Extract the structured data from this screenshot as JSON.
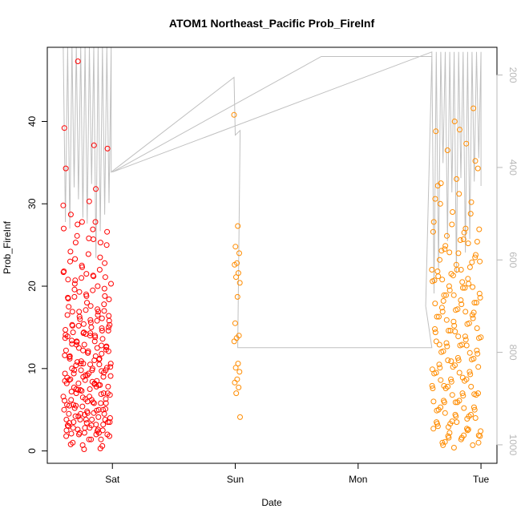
{
  "chart_data": {
    "type": "scatter",
    "title": "ATOM1 Northeast_Pacific Prob_FireInf",
    "xlabel": "Date",
    "ylabel": "Prob_FireInf",
    "x_ticks": [
      "Sat",
      "Sun",
      "Mon",
      "Tue"
    ],
    "y_ticks": [
      0,
      10,
      20,
      30,
      40
    ],
    "ylim": [
      -1.5,
      49
    ],
    "xlim_days": [
      -0.53,
      3.13
    ],
    "right_axis": {
      "ticks": [
        200,
        400,
        600,
        800,
        1000
      ],
      "ylim": [
        1040,
        140
      ],
      "color": "#b8b8b8"
    },
    "point_colors": {
      "group_sat": "#ff0000",
      "group_mon": "#ff8c00",
      "group_tue": "#ff8c00"
    },
    "line_color": "#c0c0c0",
    "groups": [
      {
        "x_range_days": [
          -0.4,
          -0.01
        ],
        "values": [
          29.8,
          26.9,
          19.6,
          17.0,
          14.2,
          13.9,
          12.5,
          12.5,
          12.1,
          10.5,
          10.0,
          9.7,
          9.0,
          8.5,
          8.1,
          7.5,
          6.3,
          6.0,
          5.5,
          5.0,
          4.5,
          4.0,
          3.8,
          3.5,
          3.2,
          2.8,
          2.5,
          2.0,
          47.3,
          36.7,
          30.3,
          28.7,
          25.3,
          22.3,
          21.8,
          21.2,
          20.7,
          18.8,
          18.8,
          18.5,
          16.5,
          16.3,
          15.8,
          15.6,
          15.2,
          14.6,
          14.4,
          14.1,
          13.8,
          13.2,
          12.7,
          12.1,
          11.5,
          11.2,
          10.9,
          10.6,
          10.0,
          9.8,
          9.5,
          9.2,
          8.9,
          8.5,
          8.2,
          7.8,
          7.5,
          7.2,
          6.9,
          6.5,
          6.1,
          5.8,
          5.5,
          5.1,
          4.8,
          4.5,
          4.1,
          3.8,
          3.5,
          3.1,
          2.8,
          2.5,
          2.2,
          1.8,
          31.8,
          27.5,
          26.6,
          25.8,
          24.2,
          23.5,
          22.5,
          21.7,
          21.3,
          20.3,
          19.7,
          19.0,
          18.6,
          17.2,
          16.9,
          16.4,
          15.9,
          15.3,
          14.9,
          14.3,
          13.7,
          13.3,
          12.9,
          12.3,
          11.9,
          11.4,
          11.1,
          10.6,
          10.2,
          9.8,
          9.4,
          9.0,
          8.6,
          8.2,
          7.8,
          7.4,
          7.0,
          6.6,
          6.2,
          5.8,
          5.4,
          5.0,
          4.6,
          4.2,
          3.8,
          3.4,
          3.0,
          2.6,
          2.2,
          1.8,
          1.4,
          1.0,
          0.6,
          0.2,
          34.3,
          27.8,
          26.1,
          25.0,
          23.9,
          23.0,
          22.0,
          21.0,
          20.3,
          19.5,
          18.7,
          17.8,
          17.1,
          16.5,
          15.8,
          15.2,
          14.6,
          14.0,
          13.4,
          12.8,
          12.2,
          11.6,
          11.0,
          10.4,
          9.8,
          9.2,
          8.6,
          8.0,
          7.4,
          6.8,
          6.2,
          5.6,
          5.0,
          4.4,
          3.8,
          3.2,
          2.6,
          2.0,
          1.4,
          0.8,
          0.3,
          27.8,
          27.0,
          25.7,
          23.3,
          22.8,
          21.5,
          20.8,
          20.0,
          19.3,
          18.4,
          17.6,
          16.9,
          16.1,
          15.4,
          14.7,
          14.0,
          13.3,
          12.6,
          11.9,
          11.2,
          10.5,
          9.8,
          9.1,
          8.4,
          7.7,
          7.0,
          6.3,
          5.6,
          4.9,
          4.2,
          3.5,
          2.8,
          2.1,
          1.4,
          0.7,
          39.2,
          37.1,
          25.3,
          21.1,
          18.0,
          17.5,
          16.9,
          16.0,
          15.3,
          15.0,
          14.4,
          13.6,
          12.9,
          12.2,
          11.5,
          10.8,
          10.1,
          9.4,
          8.7,
          8.0,
          7.3,
          6.6,
          5.9,
          5.2,
          4.5,
          3.8,
          3.1,
          2.4,
          2.0,
          15.0,
          14.3,
          13.0,
          11.8,
          10.6,
          9.4,
          8.2,
          7.0,
          5.8,
          4.6,
          3.4,
          2.2
        ]
      },
      {
        "x_range_days": [
          0.99,
          1.04
        ],
        "values": [
          40.8,
          27.3,
          24.8,
          24.0,
          22.8,
          22.6,
          21.6,
          21.1,
          20.4,
          18.7,
          15.5,
          14.0,
          13.7,
          13.3,
          10.6,
          10.1,
          9.6,
          8.7,
          8.3,
          7.7,
          7.0,
          4.1
        ]
      },
      {
        "x_range_days": [
          2.6,
          3.0
        ],
        "values": [
          22.0,
          20.5,
          18.2,
          16.8,
          14.5,
          13.3,
          12.8,
          11.0,
          10.2,
          9.5,
          8.6,
          7.8,
          6.8,
          6.0,
          5.2,
          4.6,
          4.0,
          3.5,
          3.0,
          2.6,
          2.2,
          1.8,
          1.4,
          1.0,
          0.7,
          0.4,
          30.6,
          27.0,
          26.1,
          25.4,
          24.0,
          23.2,
          22.3,
          21.5,
          20.6,
          19.8,
          18.9,
          18.0,
          17.1,
          16.3,
          15.4,
          14.6,
          13.7,
          12.8,
          12.0,
          11.1,
          10.2,
          9.4,
          8.5,
          7.6,
          6.8,
          5.9,
          5.0,
          4.2,
          3.3,
          2.4,
          1.6,
          0.7,
          41.6,
          40.0,
          38.8,
          37.3,
          36.5,
          34.3,
          31.2,
          30.0,
          28.8,
          27.5,
          26.6,
          25.7,
          24.5,
          23.5,
          22.6,
          21.8,
          20.9,
          20.0,
          19.1,
          18.3,
          17.4,
          16.5,
          15.7,
          14.8,
          13.9,
          13.1,
          12.2,
          11.3,
          10.5,
          9.6,
          8.7,
          7.9,
          7.0,
          6.1,
          5.3,
          4.4,
          3.5,
          2.7,
          1.8,
          1.0,
          39.0,
          32.5,
          30.2,
          29.0,
          27.8,
          26.5,
          24.9,
          23.8,
          22.0,
          21.2,
          20.3,
          19.5,
          18.6,
          17.8,
          16.9,
          16.1,
          15.2,
          14.4,
          13.5,
          12.7,
          11.8,
          11.0,
          10.1,
          9.3,
          8.4,
          7.6,
          6.7,
          5.9,
          5.0,
          4.2,
          3.3,
          2.5,
          1.6,
          26.9,
          25.6,
          24.3,
          22.9,
          21.3,
          20.7,
          19.8,
          18.9,
          18.0,
          17.2,
          16.3,
          15.5,
          14.6,
          13.8,
          12.9,
          12.1,
          11.2,
          10.4,
          9.5,
          8.7,
          7.8,
          7.0,
          6.1,
          5.3,
          4.4,
          3.6,
          2.7,
          1.9,
          1.1,
          35.2,
          33.0,
          32.2,
          25.2,
          24.1,
          23.0,
          22.0,
          20.8,
          19.9,
          18.9,
          17.9,
          16.9,
          15.9,
          14.9,
          13.9,
          12.9,
          11.9,
          10.9,
          9.9,
          8.9,
          7.9,
          6.9,
          5.9,
          4.9,
          3.9,
          2.9,
          1.9
        ]
      }
    ]
  }
}
